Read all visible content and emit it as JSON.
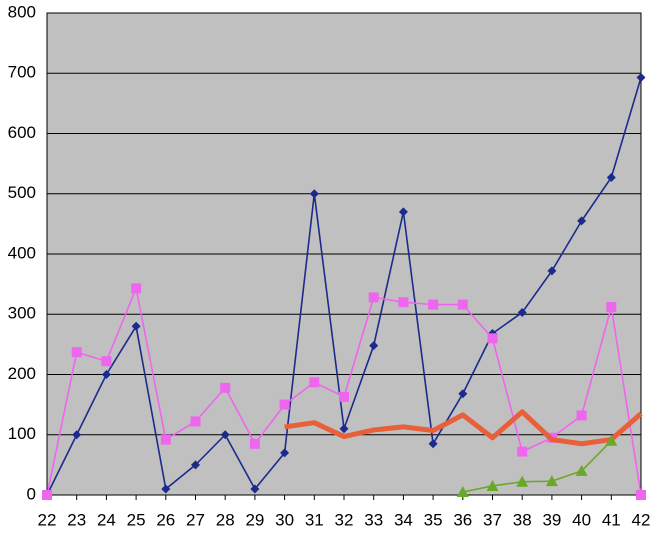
{
  "chart_data": {
    "type": "line",
    "categories": [
      "22",
      "23",
      "24",
      "25",
      "26",
      "27",
      "28",
      "29",
      "30",
      "31",
      "32",
      "33",
      "34",
      "35",
      "36",
      "37",
      "38",
      "39",
      "40",
      "41",
      "42"
    ],
    "series": [
      {
        "color": "#1c2a8c",
        "marker": "diamond",
        "values": [
          0,
          100,
          200,
          280,
          10,
          50,
          100,
          10,
          70,
          500,
          110,
          248,
          470,
          85,
          168,
          268,
          303,
          372,
          455,
          527,
          693
        ]
      },
      {
        "color": "#ee66ee",
        "marker": "square",
        "values": [
          0,
          237,
          222,
          343,
          92,
          122,
          178,
          85,
          150,
          187,
          163,
          328,
          320,
          316,
          316,
          260,
          72,
          95,
          132,
          312,
          0
        ]
      },
      {
        "color": "#e8603a",
        "marker": "none",
        "values": [
          null,
          null,
          null,
          null,
          null,
          null,
          null,
          null,
          113,
          120,
          97,
          108,
          113,
          107,
          133,
          95,
          138,
          92,
          85,
          92,
          135
        ]
      },
      {
        "color": "#6aa82a",
        "marker": "triangle",
        "values": [
          null,
          null,
          null,
          null,
          null,
          null,
          null,
          null,
          null,
          null,
          null,
          null,
          null,
          null,
          5,
          15,
          22,
          23,
          40,
          90,
          null
        ]
      }
    ],
    "ylim": [
      0,
      800
    ],
    "yticks": [
      0,
      100,
      200,
      300,
      400,
      500,
      600,
      700,
      800
    ],
    "grid": true
  }
}
